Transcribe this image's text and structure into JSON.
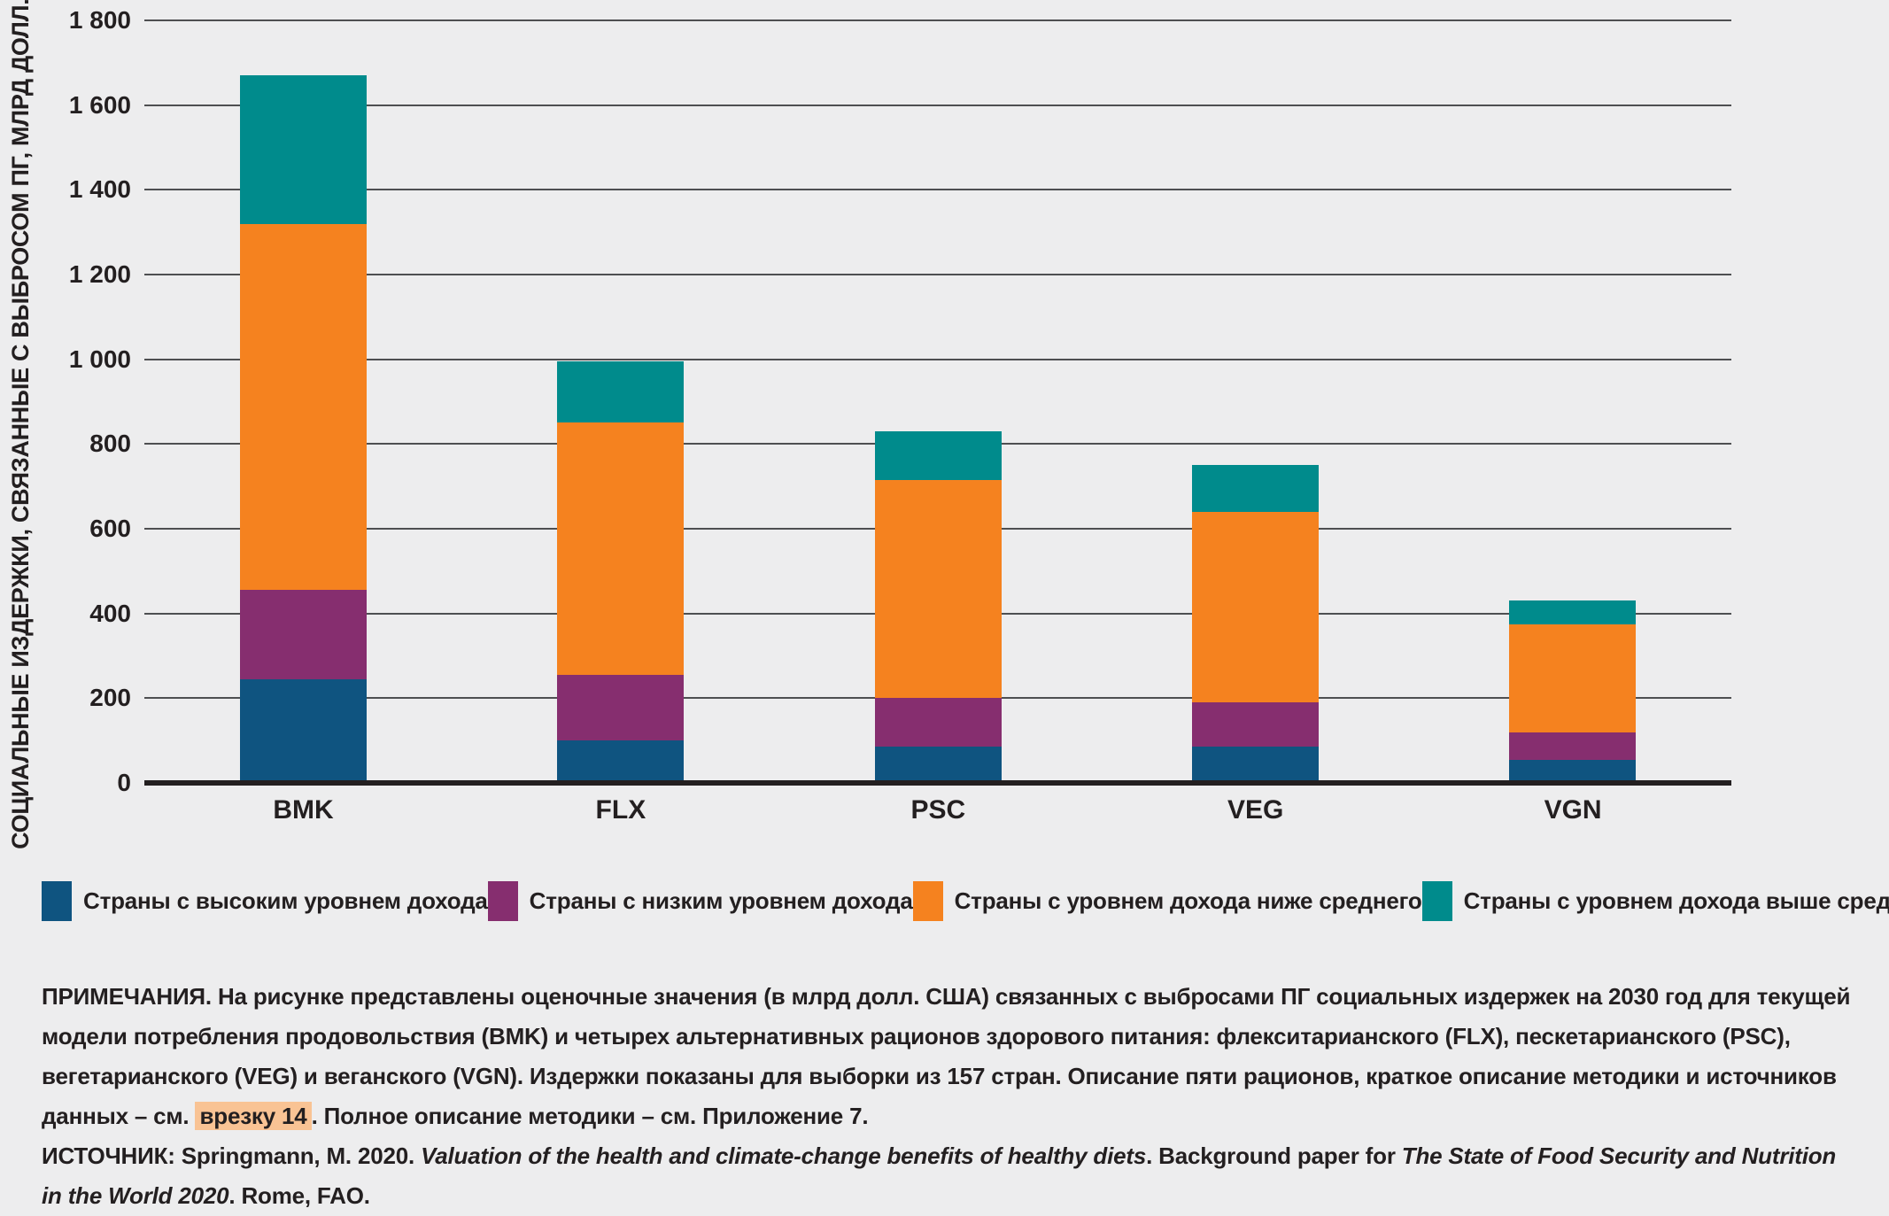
{
  "chart_data": {
    "type": "bar",
    "stacked": true,
    "ylabel": "СОЦИАЛЬНЫЕ ИЗДЕРЖКИ, СВЯЗАННЫЕ С ВЫБРОСОМ ПГ, МЛРД ДОЛЛ. США",
    "ylim": [
      0,
      1800
    ],
    "grid": true,
    "legend_position": "bottom",
    "yticks": [
      {
        "value": 0,
        "label": "0"
      },
      {
        "value": 200,
        "label": "200"
      },
      {
        "value": 400,
        "label": "400"
      },
      {
        "value": 600,
        "label": "600"
      },
      {
        "value": 800,
        "label": "800"
      },
      {
        "value": 1000,
        "label": "1 000"
      },
      {
        "value": 1200,
        "label": "1 200"
      },
      {
        "value": 1400,
        "label": "1 400"
      },
      {
        "value": 1600,
        "label": "1 600"
      },
      {
        "value": 1800,
        "label": "1 800"
      }
    ],
    "categories": [
      "BMK",
      "FLX",
      "PSC",
      "VEG",
      "VGN"
    ],
    "series": [
      {
        "name": "Страны с высоким уровнем дохода",
        "color": "#0F5480",
        "values": [
          245,
          100,
          85,
          85,
          55
        ]
      },
      {
        "name": "Страны с низким уровнем дохода",
        "color": "#862E6F",
        "values": [
          210,
          155,
          115,
          105,
          65
        ]
      },
      {
        "name": "Страны с уровнем дохода ниже среднего",
        "color": "#F5821F",
        "values": [
          865,
          595,
          515,
          450,
          255
        ]
      },
      {
        "name": "Страны с уровнем дохода выше среднего",
        "color": "#008B8C",
        "values": [
          350,
          145,
          115,
          110,
          55
        ]
      }
    ],
    "totals": [
      1670,
      995,
      830,
      750,
      430
    ]
  },
  "notes": {
    "label": "ПРИМЕЧАНИЯ.",
    "segments": [
      {
        "text": " На рисунке представлены оценочные значения (в млрд долл. США) связанных с выбросами ПГ социальных издержек на 2030 год для текущей модели потребления продовольствия (BMK) и четырех альтернативных рационов здорового питания: флекситарианского (FLX), пескетарианского (PSC), вегетарианского (VEG) и веганского (VGN). Издержки показаны для выборки из 157 стран. Описание пяти рационов, краткое описание методики и источников данных – см. "
      },
      {
        "text": "врезку 14",
        "highlight": true
      },
      {
        "text": ". Полное описание методики – см. Приложение 7."
      }
    ]
  },
  "source": {
    "label": "ИСТОЧНИК:",
    "segments": [
      {
        "text": " Springmann, M. 2020. "
      },
      {
        "text": "Valuation of the health and climate-change benefits of healthy diets",
        "italic": true
      },
      {
        "text": ". Background paper for "
      },
      {
        "text": "The State of Food Security and Nutrition in the World 2020",
        "italic": true
      },
      {
        "text": ". Rome, FAO."
      }
    ]
  },
  "colors": {
    "background": "#EDEDEE",
    "gridline": "#4E4F51",
    "axis": "#231F20",
    "text": "#231F20",
    "note_highlight": "#F9C394"
  }
}
